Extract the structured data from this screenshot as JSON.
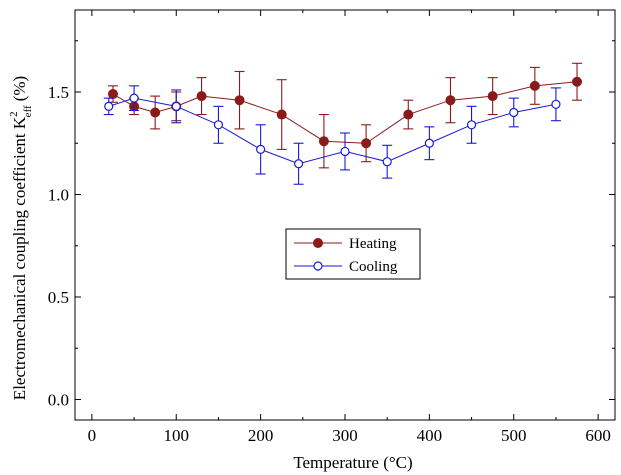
{
  "chart_data": {
    "type": "line",
    "xlabel": "Temperature (°C)",
    "ylabel": "Electromechanical coupling coefficient K",
    "ylabel_superscript": "2",
    "ylabel_subscript": "eff",
    "ylabel_unit": "(%)",
    "xlim": [
      -20,
      620
    ],
    "ylim": [
      -0.1,
      1.9
    ],
    "xticks": [
      0,
      100,
      200,
      300,
      400,
      500,
      600
    ],
    "xtick_labels": [
      "0",
      "100",
      "200",
      "300",
      "400",
      "500",
      "600"
    ],
    "yticks": [
      0.0,
      0.5,
      1.0,
      1.5
    ],
    "ytick_labels": [
      "0.0",
      "0.5",
      "1.0",
      "1.5"
    ],
    "grid": false,
    "legend_position": "center",
    "series": [
      {
        "name": "Heating",
        "color": "#8b1a1a",
        "marker": "filled-circle",
        "x": [
          25,
          50,
          75,
          100,
          130,
          175,
          225,
          275,
          325,
          375,
          425,
          475,
          525,
          575
        ],
        "y": [
          1.49,
          1.43,
          1.4,
          1.43,
          1.48,
          1.46,
          1.39,
          1.26,
          1.25,
          1.39,
          1.46,
          1.48,
          1.53,
          1.55
        ],
        "error": [
          0.04,
          0.04,
          0.08,
          0.07,
          0.09,
          0.14,
          0.17,
          0.13,
          0.09,
          0.07,
          0.11,
          0.09,
          0.09,
          0.09
        ]
      },
      {
        "name": "Cooling",
        "color": "#1a1ad6",
        "marker": "open-circle",
        "x": [
          20,
          50,
          100,
          150,
          200,
          245,
          300,
          350,
          400,
          450,
          500,
          550
        ],
        "y": [
          1.43,
          1.47,
          1.43,
          1.34,
          1.22,
          1.15,
          1.21,
          1.16,
          1.25,
          1.34,
          1.4,
          1.44
        ],
        "error": [
          0.04,
          0.06,
          0.08,
          0.09,
          0.12,
          0.1,
          0.09,
          0.08,
          0.08,
          0.09,
          0.07,
          0.08
        ]
      }
    ]
  }
}
